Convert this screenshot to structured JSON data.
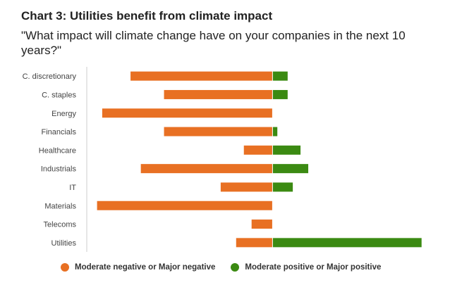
{
  "title": "Chart 3: Utilities benefit from climate impact",
  "subtitle": "\"What impact will climate change have on your companies in the next 10 years?\"",
  "colors": {
    "negative": "#e87023",
    "positive": "#3b8a12",
    "axis": "#cccccc"
  },
  "legend": {
    "negative_label": "Moderate negative or Major negative",
    "positive_label": "Moderate positive or Major positive"
  },
  "chart_data": {
    "type": "bar",
    "orientation": "horizontal",
    "stacked": "diverging",
    "categories": [
      "C. discretionary",
      "C. staples",
      "Energy",
      "Financials",
      "Healthcare",
      "Industrials",
      "IT",
      "Materials",
      "Telecoms",
      "Utilities"
    ],
    "series": [
      {
        "name": "Moderate negative or Major negative",
        "values": [
          -55,
          -42,
          -66,
          -42,
          -11,
          -51,
          -20,
          -68,
          -8,
          -14
        ]
      },
      {
        "name": "Moderate positive or Major positive",
        "values": [
          6,
          6,
          0,
          2,
          11,
          14,
          8,
          0,
          0,
          58
        ]
      }
    ],
    "xlim": [
      -72,
      60
    ],
    "legend_position": "bottom",
    "grid": false
  }
}
